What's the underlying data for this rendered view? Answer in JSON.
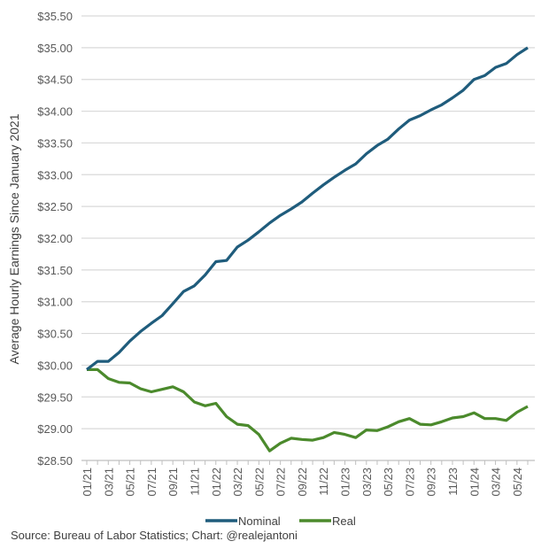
{
  "chart_data": {
    "type": "line",
    "title": "",
    "xlabel": "",
    "ylabel": "Average Hourly Earnings Since January 2021",
    "ylim": [
      28.5,
      35.5
    ],
    "ytick_step": 0.5,
    "grid": true,
    "legend_position": "bottom",
    "x": [
      "01/21",
      "02/21",
      "03/21",
      "04/21",
      "05/21",
      "06/21",
      "07/21",
      "08/21",
      "09/21",
      "10/21",
      "11/21",
      "12/21",
      "01/22",
      "02/22",
      "03/22",
      "04/22",
      "05/22",
      "06/22",
      "07/22",
      "08/22",
      "09/22",
      "10/22",
      "11/22",
      "12/22",
      "01/23",
      "02/23",
      "03/23",
      "04/23",
      "05/23",
      "06/23",
      "07/23",
      "08/23",
      "09/23",
      "10/23",
      "11/23",
      "12/23",
      "01/24",
      "02/24",
      "03/24",
      "04/24",
      "05/24",
      "06/24"
    ],
    "x_tick_labels": [
      "01/21",
      "03/21",
      "05/21",
      "07/21",
      "09/21",
      "11/21",
      "01/22",
      "03/22",
      "05/22",
      "07/22",
      "09/22",
      "11/22",
      "01/23",
      "03/23",
      "05/23",
      "07/23",
      "09/23",
      "11/23",
      "01/24",
      "03/24",
      "05/24"
    ],
    "series": [
      {
        "name": "Nominal",
        "color": "#1f5c7c",
        "values": [
          29.93,
          30.06,
          30.06,
          30.2,
          30.38,
          30.53,
          30.66,
          30.78,
          30.97,
          31.16,
          31.25,
          31.42,
          31.63,
          31.65,
          31.86,
          31.97,
          32.1,
          32.24,
          32.36,
          32.46,
          32.57,
          32.71,
          32.84,
          32.96,
          33.07,
          33.17,
          33.33,
          33.46,
          33.56,
          33.72,
          33.86,
          33.93,
          34.02,
          34.1,
          34.21,
          34.33,
          34.5,
          34.56,
          34.69,
          34.75,
          34.89,
          35.0
        ]
      },
      {
        "name": "Real",
        "color": "#4b8a2c",
        "values": [
          29.93,
          29.93,
          29.79,
          29.73,
          29.72,
          29.63,
          29.58,
          29.62,
          29.66,
          29.58,
          29.42,
          29.36,
          29.4,
          29.19,
          29.07,
          29.05,
          28.91,
          28.65,
          28.77,
          28.85,
          28.83,
          28.82,
          28.86,
          28.94,
          28.91,
          28.86,
          28.98,
          28.97,
          29.03,
          29.11,
          29.16,
          29.07,
          29.06,
          29.11,
          29.17,
          29.19,
          29.25,
          29.16,
          29.16,
          29.13,
          29.26,
          29.35
        ]
      }
    ]
  },
  "source": "Source: Bureau of Labor Statistics; Chart: @realejantoni"
}
